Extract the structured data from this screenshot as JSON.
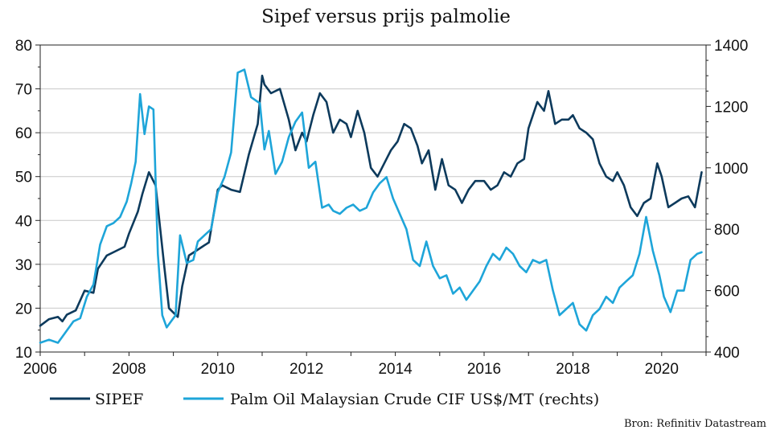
{
  "chart_data": {
    "type": "line",
    "title": "Sipef versus prijs palmolie",
    "source": "Bron: Refinitiv Datastream",
    "x_ticks": [
      "2006",
      "2008",
      "2010",
      "2012",
      "2014",
      "2016",
      "2018",
      "2020"
    ],
    "xlim": [
      2006,
      2021
    ],
    "y_left": {
      "ylim": [
        10,
        80
      ],
      "ticks": [
        "10",
        "20",
        "30",
        "40",
        "50",
        "60",
        "70",
        "80"
      ]
    },
    "y_right": {
      "ylim": [
        400,
        1400
      ],
      "ticks": [
        "400",
        "600",
        "800",
        "1000",
        "1200",
        "1400"
      ]
    },
    "grid": true,
    "legend_position": "bottom",
    "series": [
      {
        "name": "SIPEF",
        "axis": "left",
        "color": "#0d3a5c",
        "x": [
          2006.0,
          2006.2,
          2006.4,
          2006.5,
          2006.6,
          2006.8,
          2007.0,
          2007.2,
          2007.3,
          2007.5,
          2007.7,
          2007.9,
          2008.0,
          2008.2,
          2008.3,
          2008.45,
          2008.6,
          2008.7,
          2008.8,
          2008.9,
          2009.0,
          2009.1,
          2009.2,
          2009.35,
          2009.5,
          2009.65,
          2009.8,
          2010.0,
          2010.1,
          2010.3,
          2010.5,
          2010.7,
          2010.9,
          2011.0,
          2011.05,
          2011.2,
          2011.4,
          2011.6,
          2011.75,
          2011.9,
          2012.0,
          2012.15,
          2012.3,
          2012.45,
          2012.6,
          2012.75,
          2012.9,
          2013.0,
          2013.15,
          2013.3,
          2013.45,
          2013.6,
          2013.75,
          2013.9,
          2014.05,
          2014.2,
          2014.35,
          2014.5,
          2014.6,
          2014.75,
          2014.9,
          2015.05,
          2015.2,
          2015.35,
          2015.5,
          2015.65,
          2015.8,
          2016.0,
          2016.15,
          2016.3,
          2016.45,
          2016.6,
          2016.75,
          2016.9,
          2017.0,
          2017.2,
          2017.35,
          2017.45,
          2017.6,
          2017.75,
          2017.9,
          2018.0,
          2018.15,
          2018.3,
          2018.45,
          2018.6,
          2018.75,
          2018.9,
          2019.0,
          2019.15,
          2019.3,
          2019.45,
          2019.6,
          2019.75,
          2019.9,
          2020.0,
          2020.15,
          2020.3,
          2020.45,
          2020.6,
          2020.75,
          2020.9
        ],
        "values": [
          16,
          17.5,
          18,
          17,
          18.5,
          19.5,
          24,
          23.5,
          29,
          32,
          33,
          34,
          37,
          42,
          46,
          51,
          48,
          38.5,
          29,
          20,
          19,
          18,
          25,
          32,
          33,
          34,
          35,
          47,
          48,
          47,
          46.5,
          55,
          62,
          73,
          71,
          69,
          70,
          63,
          56,
          60,
          58,
          64,
          69,
          67,
          60,
          63,
          62,
          59,
          65,
          60,
          52,
          50,
          53,
          56,
          58,
          62,
          61,
          57,
          53,
          56,
          47,
          54,
          48,
          47,
          44,
          47,
          49,
          49,
          47,
          48,
          51,
          50,
          53,
          54,
          61,
          67,
          65,
          69.5,
          62,
          63,
          63,
          64,
          61,
          60,
          58.5,
          53,
          50,
          49,
          51,
          48,
          43,
          41,
          44,
          45,
          53,
          50,
          43,
          44,
          45,
          45.5,
          43,
          51
        ]
      },
      {
        "name": "Palm Oil Malaysian Crude CIF US$/MT (rechts)",
        "axis": "right",
        "color": "#1ea5d9",
        "x": [
          2006.0,
          2006.2,
          2006.4,
          2006.6,
          2006.75,
          2006.9,
          2007.05,
          2007.2,
          2007.35,
          2007.5,
          2007.65,
          2007.8,
          2007.95,
          2008.05,
          2008.15,
          2008.25,
          2008.35,
          2008.45,
          2008.55,
          2008.65,
          2008.75,
          2008.85,
          2008.95,
          2009.05,
          2009.15,
          2009.3,
          2009.45,
          2009.55,
          2009.7,
          2009.85,
          2010.0,
          2010.15,
          2010.3,
          2010.45,
          2010.6,
          2010.75,
          2010.95,
          2011.05,
          2011.15,
          2011.3,
          2011.45,
          2011.6,
          2011.75,
          2011.9,
          2012.05,
          2012.2,
          2012.35,
          2012.5,
          2012.6,
          2012.75,
          2012.9,
          2013.05,
          2013.2,
          2013.35,
          2013.5,
          2013.65,
          2013.8,
          2013.95,
          2014.1,
          2014.25,
          2014.4,
          2014.55,
          2014.7,
          2014.85,
          2015.0,
          2015.15,
          2015.3,
          2015.45,
          2015.6,
          2015.75,
          2015.9,
          2016.05,
          2016.2,
          2016.35,
          2016.5,
          2016.65,
          2016.8,
          2016.95,
          2017.1,
          2017.25,
          2017.4,
          2017.55,
          2017.7,
          2017.85,
          2018.0,
          2018.15,
          2018.3,
          2018.45,
          2018.6,
          2018.75,
          2018.9,
          2019.05,
          2019.2,
          2019.35,
          2019.5,
          2019.65,
          2019.8,
          2019.95,
          2020.05,
          2020.2,
          2020.35,
          2020.5,
          2020.65,
          2020.8,
          2020.9
        ],
        "values": [
          430,
          440,
          430,
          470,
          500,
          510,
          580,
          620,
          750,
          810,
          820,
          840,
          890,
          950,
          1020,
          1240,
          1110,
          1200,
          1190,
          720,
          520,
          480,
          500,
          520,
          780,
          690,
          700,
          760,
          780,
          800,
          920,
          970,
          1050,
          1310,
          1320,
          1230,
          1210,
          1060,
          1120,
          980,
          1020,
          1100,
          1150,
          1180,
          1000,
          1020,
          870,
          880,
          860,
          850,
          870,
          880,
          860,
          870,
          920,
          950,
          970,
          900,
          850,
          800,
          700,
          680,
          760,
          680,
          640,
          650,
          590,
          610,
          570,
          600,
          630,
          680,
          720,
          700,
          740,
          720,
          680,
          660,
          700,
          690,
          700,
          600,
          520,
          540,
          560,
          490,
          470,
          520,
          540,
          580,
          560,
          610,
          630,
          650,
          720,
          840,
          730,
          650,
          580,
          530,
          600,
          600,
          700,
          720,
          725
        ]
      }
    ]
  }
}
